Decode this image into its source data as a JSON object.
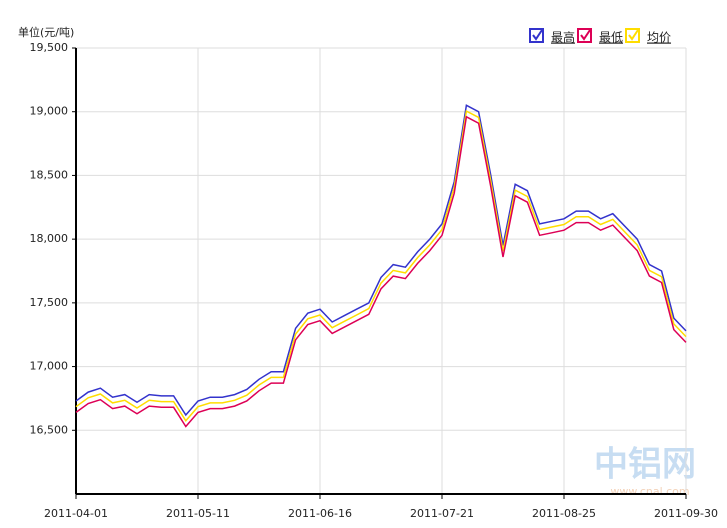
{
  "chart_data": {
    "type": "line",
    "y_axis_label": "单位(元/吨)",
    "watermark": "中铝网",
    "watermark_url": "www.cnal.com",
    "categories": [
      "2011-04-01",
      null,
      null,
      null,
      null,
      null,
      null,
      null,
      null,
      null,
      "2011-05-11",
      null,
      null,
      null,
      null,
      null,
      null,
      null,
      null,
      null,
      "2011-06-16",
      null,
      null,
      null,
      null,
      null,
      null,
      null,
      null,
      null,
      "2011-07-21",
      null,
      null,
      null,
      null,
      null,
      null,
      null,
      null,
      null,
      "2011-08-25",
      null,
      null,
      null,
      null,
      null,
      null,
      null,
      null,
      null,
      "2011-09-30"
    ],
    "series": [
      {
        "name": "最高",
        "color": "#3333cc",
        "values": [
          16730,
          16800,
          16830,
          16760,
          16780,
          16720,
          16780,
          16770,
          16770,
          16620,
          16730,
          16760,
          16760,
          16780,
          16820,
          16900,
          16960,
          16960,
          17300,
          17420,
          17450,
          17350,
          17400,
          17450,
          17500,
          17700,
          17800,
          17780,
          17900,
          18000,
          18120,
          18450,
          19050,
          19000,
          18500,
          17950,
          18430,
          18380,
          18120,
          18140,
          18160,
          18220,
          18220,
          18160,
          18200,
          18100,
          18000,
          17800,
          17750,
          17380,
          17280
        ]
      },
      {
        "name": "最低",
        "color": "#dd0055",
        "values": [
          16640,
          16710,
          16740,
          16670,
          16690,
          16630,
          16690,
          16680,
          16680,
          16530,
          16640,
          16670,
          16670,
          16690,
          16730,
          16810,
          16870,
          16870,
          17210,
          17330,
          17360,
          17260,
          17310,
          17360,
          17410,
          17610,
          17710,
          17690,
          17810,
          17910,
          18030,
          18360,
          18960,
          18910,
          18410,
          17860,
          18340,
          18290,
          18030,
          18050,
          18070,
          18130,
          18130,
          18070,
          18110,
          18010,
          17910,
          17710,
          17660,
          17290,
          17190
        ]
      },
      {
        "name": "均价",
        "color": "#ffdd00",
        "values": [
          16685,
          16755,
          16785,
          16715,
          16735,
          16675,
          16735,
          16725,
          16725,
          16575,
          16685,
          16715,
          16715,
          16735,
          16775,
          16855,
          16915,
          16915,
          17255,
          17375,
          17405,
          17305,
          17355,
          17405,
          17455,
          17655,
          17755,
          17735,
          17855,
          17955,
          18075,
          18405,
          19005,
          18955,
          18455,
          17905,
          18385,
          18335,
          18075,
          18095,
          18115,
          18175,
          18175,
          18115,
          18155,
          18055,
          17955,
          17755,
          17705,
          17335,
          17235
        ]
      }
    ],
    "ylim": [
      16000,
      19500
    ],
    "yticks": [
      {
        "value": 16500,
        "label": "16,500"
      },
      {
        "value": 17000,
        "label": "17,000"
      },
      {
        "value": 17500,
        "label": "17,500"
      },
      {
        "value": 18000,
        "label": "18,000"
      },
      {
        "value": 18500,
        "label": "18,500"
      },
      {
        "value": 19000,
        "label": "19,000"
      },
      {
        "value": 19500,
        "label": "19,500"
      }
    ],
    "grid": true
  }
}
